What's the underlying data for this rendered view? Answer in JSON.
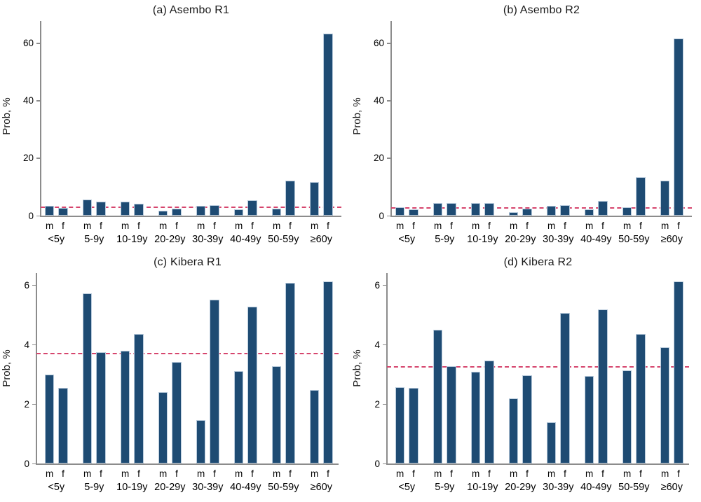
{
  "figure": {
    "bar_color": "#1E4B73",
    "bar_border_color": "#B9CBDC",
    "refline_color": "#D6456D",
    "axis_color": "#8C8C8C",
    "sex_labels": [
      "m",
      "f"
    ],
    "age_groups": [
      "<5y",
      "5-9y",
      "10-19y",
      "20-29y",
      "30-39y",
      "40-49y",
      "50-59y",
      "≥60y"
    ]
  },
  "chart_data": [
    {
      "type": "bar",
      "title": "(a) Asembo R1",
      "ylabel": "Prob, %",
      "categories": [
        "<5y",
        "5-9y",
        "10-19y",
        "20-29y",
        "30-39y",
        "40-49y",
        "50-59y",
        "≥60y"
      ],
      "bar_sublabels": [
        "m",
        "f"
      ],
      "series": [
        {
          "name": "m",
          "values": [
            3.5,
            5.5,
            4.9,
            1.7,
            3.4,
            2.2,
            2.4,
            11.8
          ]
        },
        {
          "name": "f",
          "values": [
            2.6,
            4.8,
            4.2,
            2.4,
            3.6,
            5.4,
            12.2,
            63.2
          ]
        }
      ],
      "refline": 2.85,
      "yticks": [
        0,
        20,
        40,
        60
      ],
      "ylim": [
        0,
        67.7
      ],
      "grid": false,
      "legend": "none"
    },
    {
      "type": "bar",
      "title": "(b) Asembo R2",
      "ylabel": "Prob, %",
      "categories": [
        "<5y",
        "5-9y",
        "10-19y",
        "20-29y",
        "30-39y",
        "40-49y",
        "50-59y",
        "≥60y"
      ],
      "bar_sublabels": [
        "m",
        "f"
      ],
      "series": [
        {
          "name": "m",
          "values": [
            3.0,
            4.4,
            4.5,
            1.3,
            3.3,
            2.1,
            2.9,
            12.1
          ]
        },
        {
          "name": "f",
          "values": [
            2.3,
            4.4,
            4.5,
            2.4,
            3.7,
            5.0,
            13.3,
            61.5
          ]
        }
      ],
      "refline": 2.8,
      "yticks": [
        0,
        20,
        40,
        60
      ],
      "ylim": [
        0,
        67.7
      ],
      "grid": false,
      "legend": "none"
    },
    {
      "type": "bar",
      "title": "(c) Kibera R1",
      "ylabel": "Prob, %",
      "categories": [
        "<5y",
        "5-9y",
        "10-19y",
        "20-29y",
        "30-39y",
        "40-49y",
        "50-59y",
        "≥60y"
      ],
      "bar_sublabels": [
        "m",
        "f"
      ],
      "series": [
        {
          "name": "m",
          "values": [
            3.0,
            5.72,
            3.8,
            2.4,
            1.45,
            3.1,
            3.28,
            2.48
          ]
        },
        {
          "name": "f",
          "values": [
            2.55,
            3.73,
            4.35,
            3.42,
            5.5,
            5.27,
            6.08,
            6.12
          ]
        }
      ],
      "refline": 3.7,
      "yticks": [
        0,
        2,
        4,
        6
      ],
      "ylim": [
        0,
        6.4
      ],
      "grid": false,
      "legend": "none"
    },
    {
      "type": "bar",
      "title": "(d) Kibera  R2",
      "ylabel": "Prob, %",
      "categories": [
        "<5y",
        "5-9y",
        "10-19y",
        "20-29y",
        "30-39y",
        "40-49y",
        "50-59y",
        "≥60y"
      ],
      "bar_sublabels": [
        "m",
        "f"
      ],
      "series": [
        {
          "name": "m",
          "values": [
            2.57,
            4.5,
            3.08,
            2.2,
            1.38,
            2.95,
            3.12,
            3.9
          ]
        },
        {
          "name": "f",
          "values": [
            2.55,
            3.28,
            3.45,
            2.97,
            5.05,
            5.18,
            4.35,
            6.12
          ]
        }
      ],
      "refline": 3.25,
      "yticks": [
        0,
        2,
        4,
        6
      ],
      "ylim": [
        0,
        6.4
      ],
      "grid": false,
      "legend": "none"
    }
  ]
}
